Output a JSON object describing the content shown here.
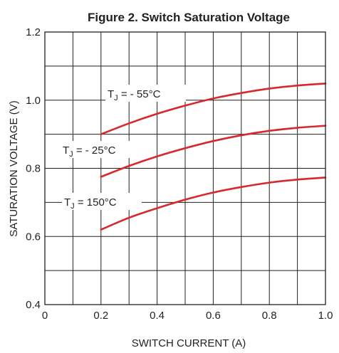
{
  "chart_data": {
    "type": "line",
    "title": "Figure 2. Switch Saturation Voltage",
    "xlabel": "SWITCH CURRENT (A)",
    "ylabel": "SATURATION VOLTAGE (V)",
    "xlim": [
      0,
      1.0
    ],
    "ylim": [
      0.4,
      1.2
    ],
    "x_ticks": [
      "0",
      "0.2",
      "0.4",
      "0.6",
      "0.8",
      "1.0"
    ],
    "y_ticks": [
      "0.4",
      "0.6",
      "0.8",
      "1.0",
      "1.2"
    ],
    "grid": true,
    "line_color": "#d7282f",
    "series": [
      {
        "label_main": "T",
        "label_sub": "J",
        "label_rest": " = - 55°C",
        "x": [
          0.2,
          0.3,
          0.4,
          0.5,
          0.6,
          0.7,
          0.8,
          0.9,
          1.0
        ],
        "y": [
          0.9,
          0.932,
          0.96,
          0.984,
          1.005,
          1.021,
          1.034,
          1.043,
          1.049
        ]
      },
      {
        "label_main": "T",
        "label_sub": "J",
        "label_rest": " = - 25°C",
        "x": [
          0.2,
          0.3,
          0.4,
          0.5,
          0.6,
          0.7,
          0.8,
          0.9,
          1.0
        ],
        "y": [
          0.775,
          0.807,
          0.835,
          0.859,
          0.88,
          0.897,
          0.91,
          0.919,
          0.925
        ]
      },
      {
        "label_main": "T",
        "label_sub": "J",
        "label_rest": " = 150°C",
        "x": [
          0.2,
          0.3,
          0.4,
          0.5,
          0.6,
          0.7,
          0.8,
          0.9,
          1.0
        ],
        "y": [
          0.62,
          0.655,
          0.683,
          0.708,
          0.729,
          0.745,
          0.758,
          0.767,
          0.773
        ]
      }
    ]
  }
}
